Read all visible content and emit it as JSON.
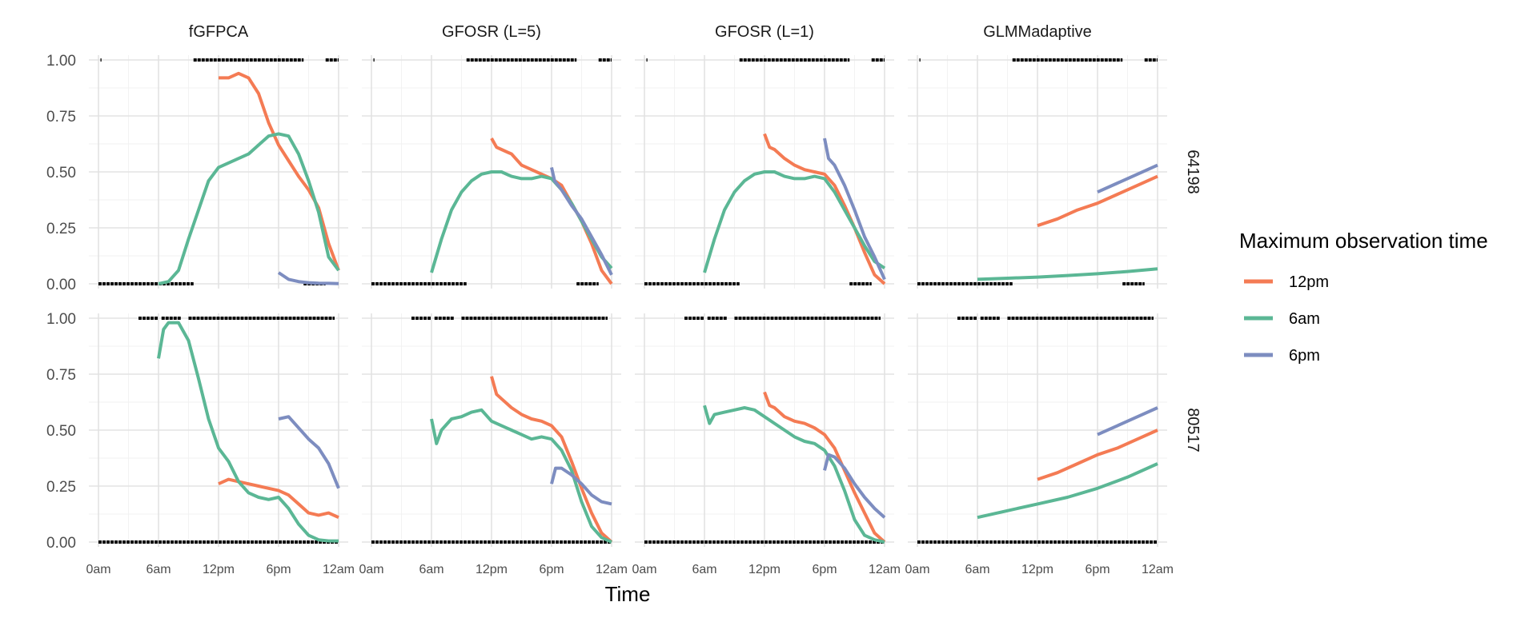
{
  "chart_data": {
    "type": "line",
    "xlabel": "Time",
    "ylabel": "",
    "ylim": [
      0,
      1
    ],
    "xlim": [
      0,
      24
    ],
    "x_ticks": [
      0,
      6,
      12,
      18,
      24
    ],
    "x_tick_labels": [
      "0am",
      "6am",
      "12pm",
      "6pm",
      "12am"
    ],
    "y_ticks": [
      0,
      0.25,
      0.5,
      0.75,
      1
    ],
    "y_tick_labels": [
      "0.00",
      "0.25",
      "0.50",
      "0.75",
      "1.00"
    ],
    "grid": true,
    "legend": {
      "title": "Maximum observation time",
      "placement": "right",
      "entries": [
        {
          "label": "12pm",
          "color": "#F47B54"
        },
        {
          "label": "6am",
          "color": "#5BB795"
        },
        {
          "label": "6pm",
          "color": "#7D8DC0"
        }
      ]
    },
    "columns": [
      "fGFPCA",
      "GFOSR (L=5)",
      "GFOSR (L=1)",
      "GLMMadaptive"
    ],
    "rows": [
      "64198",
      "80517"
    ],
    "observations": {
      "64198": {
        "ones": [
          [
            0.2,
            0.3
          ],
          [
            9.5,
            20.5
          ],
          [
            22.7,
            24
          ]
        ],
        "zeros": [
          [
            0,
            9.5
          ],
          [
            20.5,
            22.7
          ]
        ]
      },
      "80517": {
        "ones": [
          [
            4,
            6
          ],
          [
            6.3,
            8.3
          ],
          [
            9,
            23.6
          ],
          [
            21.8,
            22.0
          ]
        ],
        "zeros": [
          [
            0,
            24
          ]
        ]
      }
    },
    "panels": [
      {
        "row": "64198",
        "column": "fGFPCA",
        "series": [
          {
            "name": "12pm",
            "x": [
              12,
              13,
              14,
              15,
              16,
              17,
              18,
              19,
              20,
              21,
              22,
              23,
              24
            ],
            "y": [
              0.92,
              0.92,
              0.94,
              0.92,
              0.85,
              0.72,
              0.62,
              0.55,
              0.48,
              0.42,
              0.34,
              0.18,
              0.06
            ]
          },
          {
            "name": "6am",
            "x": [
              6,
              7,
              8,
              9,
              10,
              11,
              12,
              13,
              14,
              15,
              16,
              17,
              18,
              19,
              20,
              21,
              22,
              23,
              24
            ],
            "y": [
              0,
              0.01,
              0.06,
              0.2,
              0.33,
              0.46,
              0.52,
              0.54,
              0.56,
              0.58,
              0.62,
              0.66,
              0.67,
              0.66,
              0.58,
              0.46,
              0.32,
              0.12,
              0.06
            ]
          },
          {
            "name": "6pm",
            "x": [
              18,
              19,
              20,
              21,
              22,
              23,
              24
            ],
            "y": [
              0.05,
              0.02,
              0.01,
              0.005,
              0.003,
              0.002,
              0.001
            ]
          }
        ]
      },
      {
        "row": "64198",
        "column": "GFOSR (L=5)",
        "series": [
          {
            "name": "12pm",
            "x": [
              12,
              12.5,
              13,
              14,
              15,
              16,
              17,
              18,
              19,
              20,
              21,
              22,
              23,
              24
            ],
            "y": [
              0.65,
              0.61,
              0.6,
              0.58,
              0.53,
              0.51,
              0.49,
              0.47,
              0.44,
              0.36,
              0.28,
              0.18,
              0.06,
              0
            ]
          },
          {
            "name": "6am",
            "x": [
              6,
              7,
              8,
              9,
              10,
              11,
              12,
              13,
              14,
              15,
              16,
              17,
              18,
              19,
              20,
              21,
              22,
              23,
              24
            ],
            "y": [
              0.05,
              0.2,
              0.33,
              0.41,
              0.46,
              0.49,
              0.5,
              0.5,
              0.48,
              0.47,
              0.47,
              0.48,
              0.47,
              0.42,
              0.36,
              0.28,
              0.2,
              0.12,
              0.07
            ]
          },
          {
            "name": "6pm",
            "x": [
              18,
              18.3,
              19,
              20,
              21,
              22,
              23,
              24
            ],
            "y": [
              0.52,
              0.46,
              0.42,
              0.35,
              0.29,
              0.21,
              0.13,
              0.04
            ]
          }
        ]
      },
      {
        "row": "64198",
        "column": "GFOSR (L=1)",
        "series": [
          {
            "name": "12pm",
            "x": [
              12,
              12.5,
              13,
              14,
              15,
              16,
              17,
              18,
              19,
              20,
              21,
              22,
              23,
              24
            ],
            "y": [
              0.67,
              0.61,
              0.6,
              0.56,
              0.53,
              0.51,
              0.5,
              0.49,
              0.44,
              0.35,
              0.25,
              0.14,
              0.04,
              0
            ]
          },
          {
            "name": "6am",
            "x": [
              6,
              7,
              8,
              9,
              10,
              11,
              12,
              13,
              14,
              15,
              16,
              17,
              18,
              19,
              20,
              21,
              22,
              23,
              24
            ],
            "y": [
              0.05,
              0.2,
              0.33,
              0.41,
              0.46,
              0.49,
              0.5,
              0.5,
              0.48,
              0.47,
              0.47,
              0.48,
              0.47,
              0.41,
              0.33,
              0.25,
              0.17,
              0.1,
              0.07
            ]
          },
          {
            "name": "6pm",
            "x": [
              18,
              18.4,
              19,
              20,
              21,
              22,
              23,
              24
            ],
            "y": [
              0.65,
              0.56,
              0.53,
              0.44,
              0.33,
              0.21,
              0.12,
              0.02
            ]
          }
        ]
      },
      {
        "row": "64198",
        "column": "GLMMadaptive",
        "series": [
          {
            "name": "12pm",
            "x": [
              12,
              14,
              16,
              18,
              20,
              22,
              24
            ],
            "y": [
              0.26,
              0.29,
              0.33,
              0.36,
              0.4,
              0.44,
              0.48
            ]
          },
          {
            "name": "6am",
            "x": [
              6,
              9,
              12,
              15,
              18,
              21,
              24
            ],
            "y": [
              0.02,
              0.025,
              0.03,
              0.037,
              0.045,
              0.055,
              0.067
            ]
          },
          {
            "name": "6pm",
            "x": [
              18,
              20,
              22,
              24
            ],
            "y": [
              0.41,
              0.45,
              0.49,
              0.53
            ]
          }
        ]
      },
      {
        "row": "80517",
        "column": "fGFPCA",
        "series": [
          {
            "name": "12pm",
            "x": [
              12,
              13,
              14,
              15,
              16,
              17,
              18,
              19,
              20,
              21,
              22,
              23,
              24
            ],
            "y": [
              0.26,
              0.28,
              0.27,
              0.26,
              0.25,
              0.24,
              0.23,
              0.21,
              0.17,
              0.13,
              0.12,
              0.13,
              0.11
            ]
          },
          {
            "name": "6am",
            "x": [
              6,
              6.5,
              7,
              8,
              9,
              10,
              11,
              12,
              13,
              14,
              15,
              16,
              17,
              18,
              19,
              20,
              21,
              22,
              23,
              24
            ],
            "y": [
              0.82,
              0.95,
              0.98,
              0.98,
              0.9,
              0.73,
              0.55,
              0.42,
              0.36,
              0.27,
              0.22,
              0.2,
              0.19,
              0.2,
              0.15,
              0.08,
              0.03,
              0.01,
              0.005,
              0.005
            ]
          },
          {
            "name": "6pm",
            "x": [
              18,
              19,
              20,
              21,
              22,
              23,
              24
            ],
            "y": [
              0.55,
              0.56,
              0.51,
              0.46,
              0.42,
              0.35,
              0.24
            ]
          }
        ]
      },
      {
        "row": "80517",
        "column": "GFOSR (L=5)",
        "series": [
          {
            "name": "12pm",
            "x": [
              12,
              12.5,
              13,
              14,
              15,
              16,
              17,
              18,
              19,
              20,
              21,
              22,
              23,
              24
            ],
            "y": [
              0.74,
              0.66,
              0.64,
              0.6,
              0.57,
              0.55,
              0.54,
              0.52,
              0.47,
              0.36,
              0.24,
              0.13,
              0.04,
              0
            ]
          },
          {
            "name": "6am",
            "x": [
              6,
              6.5,
              7,
              8,
              9,
              10,
              11,
              12,
              13,
              14,
              15,
              16,
              17,
              18,
              19,
              20,
              21,
              22,
              23,
              24
            ],
            "y": [
              0.55,
              0.44,
              0.5,
              0.55,
              0.56,
              0.58,
              0.59,
              0.54,
              0.52,
              0.5,
              0.48,
              0.46,
              0.47,
              0.46,
              0.41,
              0.32,
              0.18,
              0.07,
              0.02,
              0
            ]
          },
          {
            "name": "6pm",
            "x": [
              18,
              18.4,
              19,
              20,
              21,
              22,
              23,
              24
            ],
            "y": [
              0.26,
              0.33,
              0.33,
              0.3,
              0.26,
              0.21,
              0.18,
              0.17
            ]
          }
        ]
      },
      {
        "row": "80517",
        "column": "GFOSR (L=1)",
        "series": [
          {
            "name": "12pm",
            "x": [
              12,
              12.5,
              13,
              14,
              15,
              16,
              17,
              18,
              19,
              20,
              21,
              22,
              23,
              24
            ],
            "y": [
              0.67,
              0.61,
              0.6,
              0.56,
              0.54,
              0.53,
              0.51,
              0.48,
              0.42,
              0.32,
              0.22,
              0.13,
              0.04,
              0
            ]
          },
          {
            "name": "6am",
            "x": [
              6,
              6.5,
              7,
              8,
              9,
              10,
              11,
              12,
              13,
              14,
              15,
              16,
              17,
              18,
              19,
              20,
              21,
              22,
              23,
              24
            ],
            "y": [
              0.61,
              0.53,
              0.57,
              0.58,
              0.59,
              0.6,
              0.59,
              0.56,
              0.53,
              0.5,
              0.47,
              0.45,
              0.44,
              0.41,
              0.34,
              0.23,
              0.1,
              0.03,
              0.01,
              0
            ]
          },
          {
            "name": "6pm",
            "x": [
              18,
              18.4,
              19,
              20,
              21,
              22,
              23,
              24
            ],
            "y": [
              0.32,
              0.39,
              0.38,
              0.33,
              0.26,
              0.2,
              0.15,
              0.11
            ]
          }
        ]
      },
      {
        "row": "80517",
        "column": "GLMMadaptive",
        "series": [
          {
            "name": "12pm",
            "x": [
              12,
              14,
              16,
              18,
              20,
              22,
              24
            ],
            "y": [
              0.28,
              0.31,
              0.35,
              0.39,
              0.42,
              0.46,
              0.5
            ]
          },
          {
            "name": "6am",
            "x": [
              6,
              9,
              12,
              15,
              18,
              21,
              24
            ],
            "y": [
              0.11,
              0.14,
              0.17,
              0.2,
              0.24,
              0.29,
              0.35
            ]
          },
          {
            "name": "6pm",
            "x": [
              18,
              20,
              22,
              24
            ],
            "y": [
              0.48,
              0.52,
              0.56,
              0.6
            ]
          }
        ]
      }
    ]
  }
}
